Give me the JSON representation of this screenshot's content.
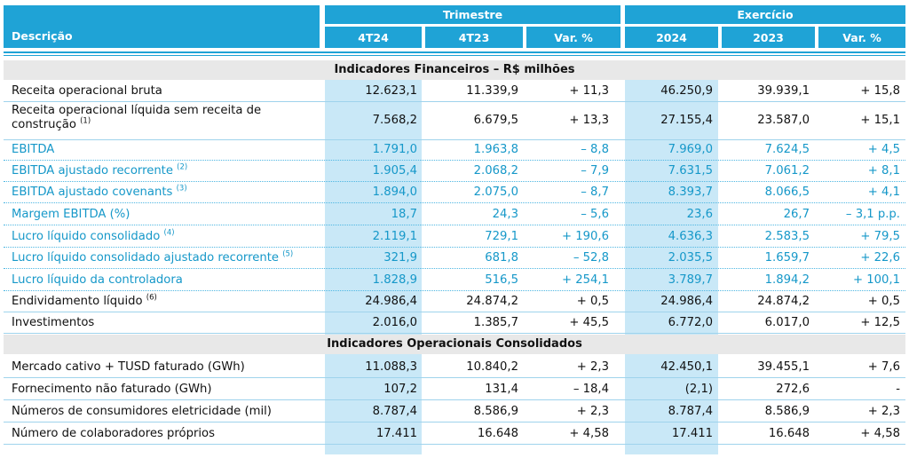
{
  "header": {
    "descricao": "Descrição",
    "trimestre": "Trimestre",
    "exercicio": "Exercício",
    "cols": [
      "4T24",
      "4T23",
      "Var. %",
      "2024",
      "2023",
      "Var. %"
    ]
  },
  "sections": [
    {
      "title": "Indicadores Financeiros – R$ milhões",
      "rows": [
        {
          "label": "Receita operacional bruta",
          "note": "",
          "values": [
            "12.623,1",
            "11.339,9",
            "+ 11,3",
            "46.250,9",
            "39.939,1",
            "+ 15,8"
          ],
          "highlight": false
        },
        {
          "label": "Receita operacional líquida sem receita de construção",
          "note": "(1)",
          "values": [
            "7.568,2",
            "6.679,5",
            "+ 13,3",
            "27.155,4",
            "23.587,0",
            "+ 15,1"
          ],
          "highlight": false
        },
        {
          "label": "EBITDA",
          "note": "",
          "values": [
            "1.791,0",
            "1.963,8",
            "– 8,8",
            "7.969,0",
            "7.624,5",
            "+ 4,5"
          ],
          "highlight": true
        },
        {
          "label": "EBITDA ajustado recorrente",
          "note": "(2)",
          "values": [
            "1.905,4",
            "2.068,2",
            "– 7,9",
            "7.631,5",
            "7.061,2",
            "+ 8,1"
          ],
          "highlight": true
        },
        {
          "label": "EBITDA ajustado covenants",
          "note": "(3)",
          "values": [
            "1.894,0",
            "2.075,0",
            "– 8,7",
            "8.393,7",
            "8.066,5",
            "+ 4,1"
          ],
          "highlight": true
        },
        {
          "label": "Margem EBITDA (%)",
          "note": "",
          "values": [
            "18,7",
            "24,3",
            "– 5,6",
            "23,6",
            "26,7",
            "– 3,1 p.p."
          ],
          "highlight": true
        },
        {
          "label": "Lucro líquido consolidado",
          "note": "(4)",
          "values": [
            "2.119,1",
            "729,1",
            "+ 190,6",
            "4.636,3",
            "2.583,5",
            "+ 79,5"
          ],
          "highlight": true
        },
        {
          "label": "Lucro líquido consolidado ajustado recorrente",
          "note": "(5)",
          "values": [
            "321,9",
            "681,8",
            "– 52,8",
            "2.035,5",
            "1.659,7",
            "+ 22,6"
          ],
          "highlight": true
        },
        {
          "label": "Lucro líquido da controladora",
          "note": "",
          "values": [
            "1.828,9",
            "516,5",
            "+ 254,1",
            "3.789,7",
            "1.894,2",
            "+ 100,1"
          ],
          "highlight": true
        },
        {
          "label": "Endividamento líquido",
          "note": "(6)",
          "values": [
            "24.986,4",
            "24.874,2",
            "+ 0,5",
            "24.986,4",
            "24.874,2",
            "+ 0,5"
          ],
          "highlight": false
        },
        {
          "label": "Investimentos",
          "note": "",
          "values": [
            "2.016,0",
            "1.385,7",
            "+ 45,5",
            "6.772,0",
            "6.017,0",
            "+ 12,5"
          ],
          "highlight": false
        }
      ]
    },
    {
      "title": "Indicadores Operacionais Consolidados",
      "rows": [
        {
          "label": "Mercado cativo + TUSD faturado (GWh)",
          "note": "",
          "values": [
            "11.088,3",
            "10.840,2",
            "+ 2,3",
            "42.450,1",
            "39.455,1",
            "+ 7,6"
          ],
          "highlight": false
        },
        {
          "label": "Fornecimento não faturado (GWh)",
          "note": "",
          "values": [
            "107,2",
            "131,4",
            "– 18,4",
            "(2,1)",
            "272,6",
            "-"
          ],
          "highlight": false
        },
        {
          "label": "Números de consumidores eletricidade (mil)",
          "note": "",
          "values": [
            "8.787,4",
            "8.586,9",
            "+ 2,3",
            "8.787,4",
            "8.586,9",
            "+ 2,3"
          ],
          "highlight": false
        },
        {
          "label": "Número de colaboradores próprios",
          "note": "",
          "values": [
            "17.411",
            "16.648",
            "+ 4,58",
            "17.411",
            "16.648",
            "+ 4,58"
          ],
          "highlight": false
        }
      ]
    }
  ],
  "colors": {
    "accent": "#1fa3d6",
    "highlight_text": "#1698c9",
    "column_fill": "#c9e8f7",
    "section_fill": "#e8e8e8"
  }
}
